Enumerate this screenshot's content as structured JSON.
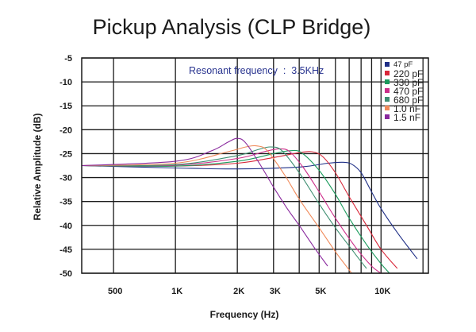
{
  "chart_data": {
    "type": "line",
    "title": "Pickup Analysis (CLP Bridge)",
    "xlabel": "Frequency (Hz)",
    "ylabel": "Relative Amplitude (dB)",
    "x_scale": "log",
    "xlim": [
      350,
      17000
    ],
    "ylim": [
      -50,
      -5
    ],
    "x_ticks": [
      {
        "value": 500,
        "label": "500"
      },
      {
        "value": 1000,
        "label": "1K"
      },
      {
        "value": 2000,
        "label": "2K"
      },
      {
        "value": 3000,
        "label": "3K"
      },
      {
        "value": 5000,
        "label": "5K"
      },
      {
        "value": 10000,
        "label": "10K"
      }
    ],
    "y_ticks": [
      -5,
      -10,
      -15,
      -20,
      -25,
      -30,
      -35,
      -40,
      -45,
      -50
    ],
    "grid": true,
    "legend_position": "top-right",
    "annotation": "Resonant frequency  :  3.5KHz",
    "series": [
      {
        "name": "47 pF",
        "color": "#1f2f86",
        "x": [
          350,
          1000,
          2000,
          4000,
          5500,
          6500,
          7200,
          8000,
          9000,
          10000,
          12000,
          15000
        ],
        "y": [
          -27.5,
          -28.0,
          -28.2,
          -27.8,
          -27.0,
          -26.8,
          -27.2,
          -29.0,
          -33.0,
          -36.5,
          -41.5,
          -47.0
        ]
      },
      {
        "name": "220 pF",
        "color": "#d8283a",
        "x": [
          350,
          1000,
          2000,
          3000,
          4000,
          4600,
          5200,
          6000,
          7000,
          8500,
          10000,
          12000
        ],
        "y": [
          -27.5,
          -27.6,
          -27.0,
          -25.8,
          -24.8,
          -24.6,
          -25.6,
          -29.0,
          -34.0,
          -40.0,
          -45.0,
          -49.0
        ]
      },
      {
        "name": "330 pF",
        "color": "#1a9a5c",
        "x": [
          350,
          1000,
          2000,
          3000,
          3600,
          4100,
          5000,
          6000,
          7000,
          8500,
          10000,
          11000
        ],
        "y": [
          -27.5,
          -27.6,
          -26.6,
          -25.0,
          -24.4,
          -24.8,
          -28.5,
          -33.5,
          -38.5,
          -44.0,
          -48.0,
          -50.0
        ]
      },
      {
        "name": "470 pF",
        "color": "#cc2f8a",
        "x": [
          350,
          1000,
          2000,
          2700,
          3200,
          3600,
          4200,
          5000,
          6000,
          7500,
          9000,
          10000
        ],
        "y": [
          -27.5,
          -27.4,
          -26.0,
          -24.6,
          -24.0,
          -24.6,
          -28.0,
          -33.0,
          -38.5,
          -44.5,
          -48.5,
          -50.0
        ]
      },
      {
        "name": "680 pF",
        "color": "#3f8f72",
        "x": [
          350,
          1000,
          2000,
          2500,
          2900,
          3300,
          4000,
          5000,
          6000,
          7500,
          8500
        ],
        "y": [
          -27.5,
          -27.3,
          -25.4,
          -24.2,
          -23.6,
          -24.4,
          -29.0,
          -35.5,
          -40.5,
          -46.0,
          -49.0
        ]
      },
      {
        "name": "1.0 nF",
        "color": "#f08a5a",
        "x": [
          350,
          1000,
          1800,
          2200,
          2500,
          2800,
          3400,
          4000,
          5000,
          6000,
          7200
        ],
        "y": [
          -27.5,
          -27.0,
          -24.6,
          -23.6,
          -23.4,
          -24.4,
          -29.5,
          -34.5,
          -40.5,
          -45.5,
          -50.0
        ]
      },
      {
        "name": "1.5 nF",
        "color": "#8a2a9e",
        "x": [
          350,
          1000,
          1500,
          1800,
          2000,
          2200,
          2600,
          3000,
          3500,
          4000,
          4800,
          5500
        ],
        "y": [
          -27.5,
          -26.6,
          -24.4,
          -22.6,
          -21.8,
          -22.8,
          -27.5,
          -32.0,
          -36.5,
          -40.0,
          -45.0,
          -48.5
        ]
      }
    ]
  }
}
